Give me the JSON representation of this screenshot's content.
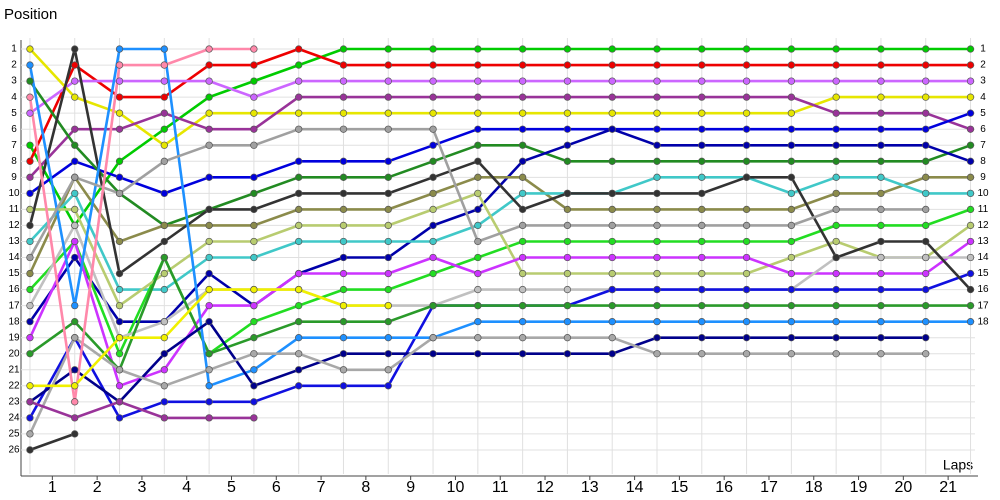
{
  "chart_data": {
    "type": "line",
    "y_label": "Position",
    "x_label": "Laps",
    "x": [
      0,
      1,
      2,
      3,
      4,
      5,
      6,
      7,
      8,
      9,
      10,
      11,
      12,
      13,
      14,
      15,
      16,
      17,
      18,
      19,
      20,
      21
    ],
    "xlim": [
      -0.2,
      21.1
    ],
    "ylim": [
      27.5,
      0
    ],
    "y2lim": [
      27.5,
      0
    ],
    "xticks": [
      {
        "value": 0.5,
        "label": "1"
      },
      {
        "value": 1.5,
        "label": "2"
      },
      {
        "value": 2.5,
        "label": "3"
      },
      {
        "value": 3.5,
        "label": "4"
      },
      {
        "value": 4.5,
        "label": "5"
      },
      {
        "value": 5.5,
        "label": "6"
      },
      {
        "value": 6.5,
        "label": "7"
      },
      {
        "value": 7.5,
        "label": "8"
      },
      {
        "value": 8.5,
        "label": "9"
      },
      {
        "value": 9.5,
        "label": "10"
      },
      {
        "value": 10.5,
        "label": "11"
      },
      {
        "value": 11.5,
        "label": "12"
      },
      {
        "value": 12.5,
        "label": "13"
      },
      {
        "value": 13.5,
        "label": "14"
      },
      {
        "value": 14.5,
        "label": "15"
      },
      {
        "value": 15.5,
        "label": "16"
      },
      {
        "value": 16.5,
        "label": "17"
      },
      {
        "value": 17.5,
        "label": "18"
      },
      {
        "value": 18.5,
        "label": "19"
      },
      {
        "value": 19.5,
        "label": "20"
      },
      {
        "value": 20.5,
        "label": "21"
      }
    ],
    "yticks": [
      1,
      2,
      3,
      4,
      5,
      6,
      7,
      8,
      9,
      10,
      11,
      12,
      13,
      14,
      15,
      16,
      17,
      18,
      19,
      20,
      21,
      22,
      23,
      24,
      25,
      26
    ],
    "y2ticks": [
      1,
      2,
      3,
      4,
      5,
      6,
      7,
      8,
      9,
      10,
      11,
      12,
      13,
      14,
      15,
      16,
      17,
      18
    ],
    "grid": true,
    "series": [
      {
        "color": "#00cc00",
        "values": [
          7,
          12,
          8,
          6,
          4,
          3,
          2,
          1,
          1,
          1,
          1,
          1,
          1,
          1,
          1,
          1,
          1,
          1,
          1,
          1,
          1,
          1
        ]
      },
      {
        "color": "#ee0000",
        "values": [
          8,
          2,
          4,
          4,
          2,
          2,
          1,
          2,
          2,
          2,
          2,
          2,
          2,
          2,
          2,
          2,
          2,
          2,
          2,
          2,
          2,
          2
        ]
      },
      {
        "color": "#cc66ff",
        "values": [
          5,
          3,
          3,
          3,
          3,
          4,
          3,
          3,
          3,
          3,
          3,
          3,
          3,
          3,
          3,
          3,
          3,
          3,
          3,
          3,
          3,
          3
        ]
      },
      {
        "color": "#e6e600",
        "values": [
          1,
          4,
          5,
          7,
          5,
          5,
          5,
          5,
          5,
          5,
          5,
          5,
          5,
          5,
          5,
          5,
          5,
          5,
          4,
          4,
          4,
          4
        ]
      },
      {
        "color": "#993399",
        "values": [
          9,
          6,
          6,
          5,
          6,
          6,
          4,
          4,
          4,
          4,
          4,
          4,
          4,
          4,
          4,
          4,
          4,
          4,
          5,
          5,
          5,
          6
        ]
      },
      {
        "color": "#0000dd",
        "values": [
          10,
          8,
          9,
          10,
          9,
          9,
          8,
          8,
          8,
          7,
          6,
          6,
          6,
          6,
          6,
          6,
          6,
          6,
          6,
          6,
          6,
          5
        ]
      },
      {
        "color": "#228b22",
        "values": [
          3,
          7,
          10,
          12,
          11,
          10,
          9,
          9,
          9,
          8,
          7,
          7,
          8,
          8,
          8,
          8,
          8,
          8,
          8,
          8,
          8,
          7
        ]
      },
      {
        "color": "#0000aa",
        "values": [
          18,
          14,
          18,
          18,
          15,
          17,
          15,
          14,
          14,
          12,
          11,
          8,
          7,
          6,
          7,
          7,
          7,
          7,
          7,
          7,
          7,
          8
        ]
      },
      {
        "color": "#8b8b4b",
        "values": [
          15,
          9,
          13,
          12,
          12,
          12,
          11,
          11,
          11,
          10,
          9,
          9,
          11,
          11,
          11,
          11,
          11,
          11,
          10,
          10,
          9,
          9
        ]
      },
      {
        "color": "#40c8c8",
        "values": [
          13,
          10,
          16,
          16,
          14,
          14,
          13,
          13,
          13,
          13,
          12,
          10,
          10,
          10,
          9,
          9,
          9,
          10,
          9,
          9,
          10,
          10
        ]
      },
      {
        "color": "#22dd22",
        "values": [
          16,
          13,
          20,
          14,
          20,
          18,
          17,
          16,
          16,
          15,
          14,
          13,
          13,
          13,
          13,
          13,
          13,
          13,
          12,
          12,
          12,
          11
        ]
      },
      {
        "color": "#b8cc70",
        "values": [
          11,
          11,
          17,
          15,
          13,
          13,
          12,
          12,
          12,
          11,
          10,
          15,
          15,
          15,
          15,
          15,
          15,
          14,
          13,
          14,
          14,
          12
        ]
      },
      {
        "color": "#cc33ff",
        "values": [
          19,
          13,
          22,
          21,
          17,
          17,
          15,
          15,
          15,
          14,
          15,
          14,
          14,
          14,
          14,
          14,
          14,
          15,
          15,
          15,
          15,
          13
        ]
      },
      {
        "color": "#c0c0c0",
        "values": [
          17,
          12,
          19,
          18,
          16,
          16,
          16,
          17,
          17,
          17,
          16,
          16,
          16,
          16,
          16,
          16,
          16,
          16,
          14,
          14,
          14,
          14
        ]
      },
      {
        "color": "#1010e0",
        "values": [
          24,
          19,
          24,
          23,
          23,
          23,
          22,
          22,
          22,
          17,
          17,
          17,
          17,
          16,
          16,
          16,
          16,
          16,
          16,
          16,
          16,
          15
        ]
      },
      {
        "color": "#333333",
        "values": [
          12,
          1,
          15,
          13,
          11,
          11,
          10,
          10,
          10,
          9,
          8,
          11,
          10,
          10,
          10,
          10,
          9,
          9,
          14,
          13,
          13,
          16
        ]
      },
      {
        "color": "#2a9a2a",
        "values": [
          20,
          18,
          21,
          14,
          20,
          19,
          18,
          18,
          18,
          17,
          17,
          17,
          17,
          17,
          17,
          17,
          17,
          17,
          17,
          17,
          17,
          17
        ]
      },
      {
        "color": "#1e90ff",
        "values": [
          2,
          17,
          1,
          1,
          22,
          21,
          19,
          19,
          19,
          19,
          18,
          18,
          18,
          18,
          18,
          18,
          18,
          18,
          18,
          18,
          18,
          18
        ]
      },
      {
        "color": "#00008b",
        "values": [
          23,
          21,
          23,
          20,
          18,
          22,
          21,
          20,
          20,
          20,
          20,
          20,
          20,
          20,
          19,
          19,
          19,
          19,
          19,
          19,
          19,
          null
        ]
      },
      {
        "color": "#a8a8a8",
        "values": [
          25,
          19,
          21,
          22,
          21,
          20,
          20,
          21,
          21,
          19,
          19,
          19,
          19,
          19,
          20,
          20,
          20,
          20,
          20,
          20,
          20,
          null
        ]
      },
      {
        "color": "#a0a0a0",
        "values": [
          14,
          9,
          10,
          8,
          7,
          7,
          6,
          6,
          6,
          6,
          13,
          12,
          12,
          12,
          12,
          12,
          12,
          12,
          11,
          11,
          11,
          null
        ]
      },
      {
        "color": "#ff88aa",
        "values": [
          4,
          23,
          2,
          2,
          1,
          1,
          null,
          null,
          null,
          null,
          null,
          null,
          null,
          null,
          null,
          null,
          null,
          null,
          null,
          null,
          null,
          null
        ]
      },
      {
        "color": "#993399",
        "values": [
          23,
          24,
          23,
          24,
          24,
          24,
          null,
          null,
          null,
          null,
          null,
          null,
          null,
          null,
          null,
          null,
          null,
          null,
          null,
          null,
          null,
          null
        ]
      },
      {
        "color": "#333333",
        "values": [
          26,
          25,
          null,
          null,
          null,
          null,
          null,
          null,
          null,
          null,
          null,
          null,
          null,
          null,
          null,
          null,
          null,
          null,
          null,
          null,
          null,
          null
        ]
      },
      {
        "color": "#f0f000",
        "values": [
          22,
          22,
          19,
          19,
          16,
          16,
          16,
          17,
          17,
          null,
          null,
          null,
          null,
          null,
          null,
          null,
          null,
          null,
          null,
          null,
          null,
          null
        ]
      }
    ]
  }
}
